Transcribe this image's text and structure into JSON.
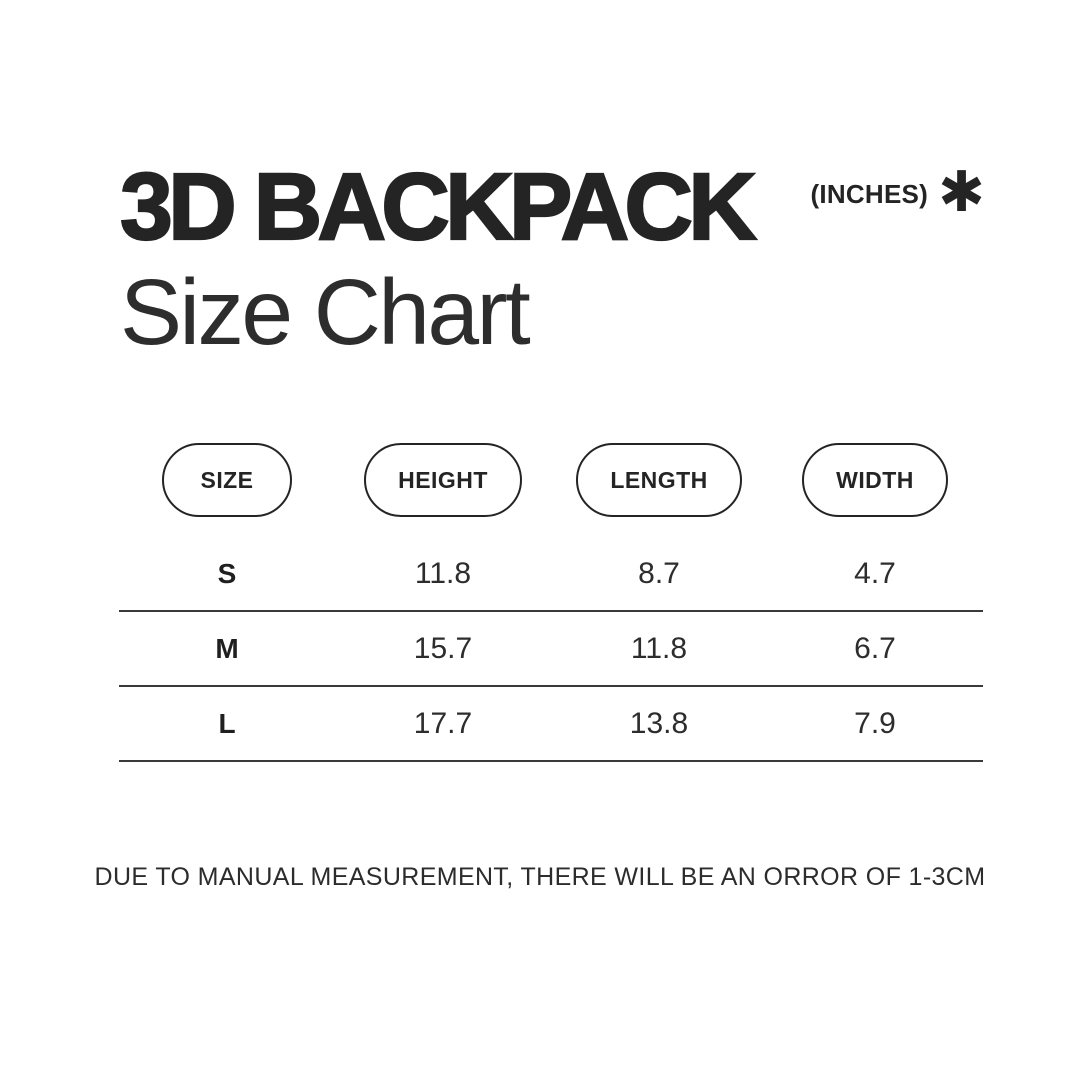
{
  "page": {
    "background": "#ffffff",
    "text_color": "#242424",
    "line_color": "#3a3a3a"
  },
  "header": {
    "title_bold": "3D BACKPACK",
    "title_regular": "Size Chart",
    "unit_label": "(INCHES)",
    "asterisk_glyph": "✱"
  },
  "table": {
    "columns": [
      {
        "label": "SIZE"
      },
      {
        "label": "HEIGHT"
      },
      {
        "label": "LENGTH"
      },
      {
        "label": "WIDTH"
      }
    ],
    "rows": [
      {
        "size": "S",
        "height": "11.8",
        "length": "8.7",
        "width": "4.7"
      },
      {
        "size": "M",
        "height": "15.7",
        "length": "11.8",
        "width": "6.7"
      },
      {
        "size": "L",
        "height": "17.7",
        "length": "13.8",
        "width": "7.9"
      }
    ]
  },
  "footer": {
    "note": "DUE TO MANUAL MEASUREMENT, THERE WILL BE AN ORROR OF 1-3CM"
  },
  "chart_data": {
    "type": "table",
    "title": "3D BACKPACK Size Chart",
    "unit": "inches",
    "columns": [
      "SIZE",
      "HEIGHT",
      "LENGTH",
      "WIDTH"
    ],
    "rows": [
      [
        "S",
        11.8,
        8.7,
        4.7
      ],
      [
        "M",
        15.7,
        11.8,
        6.7
      ],
      [
        "L",
        17.7,
        13.8,
        7.9
      ]
    ],
    "note": "DUE TO MANUAL MEASUREMENT, THERE WILL BE AN ORROR OF 1-3CM"
  }
}
